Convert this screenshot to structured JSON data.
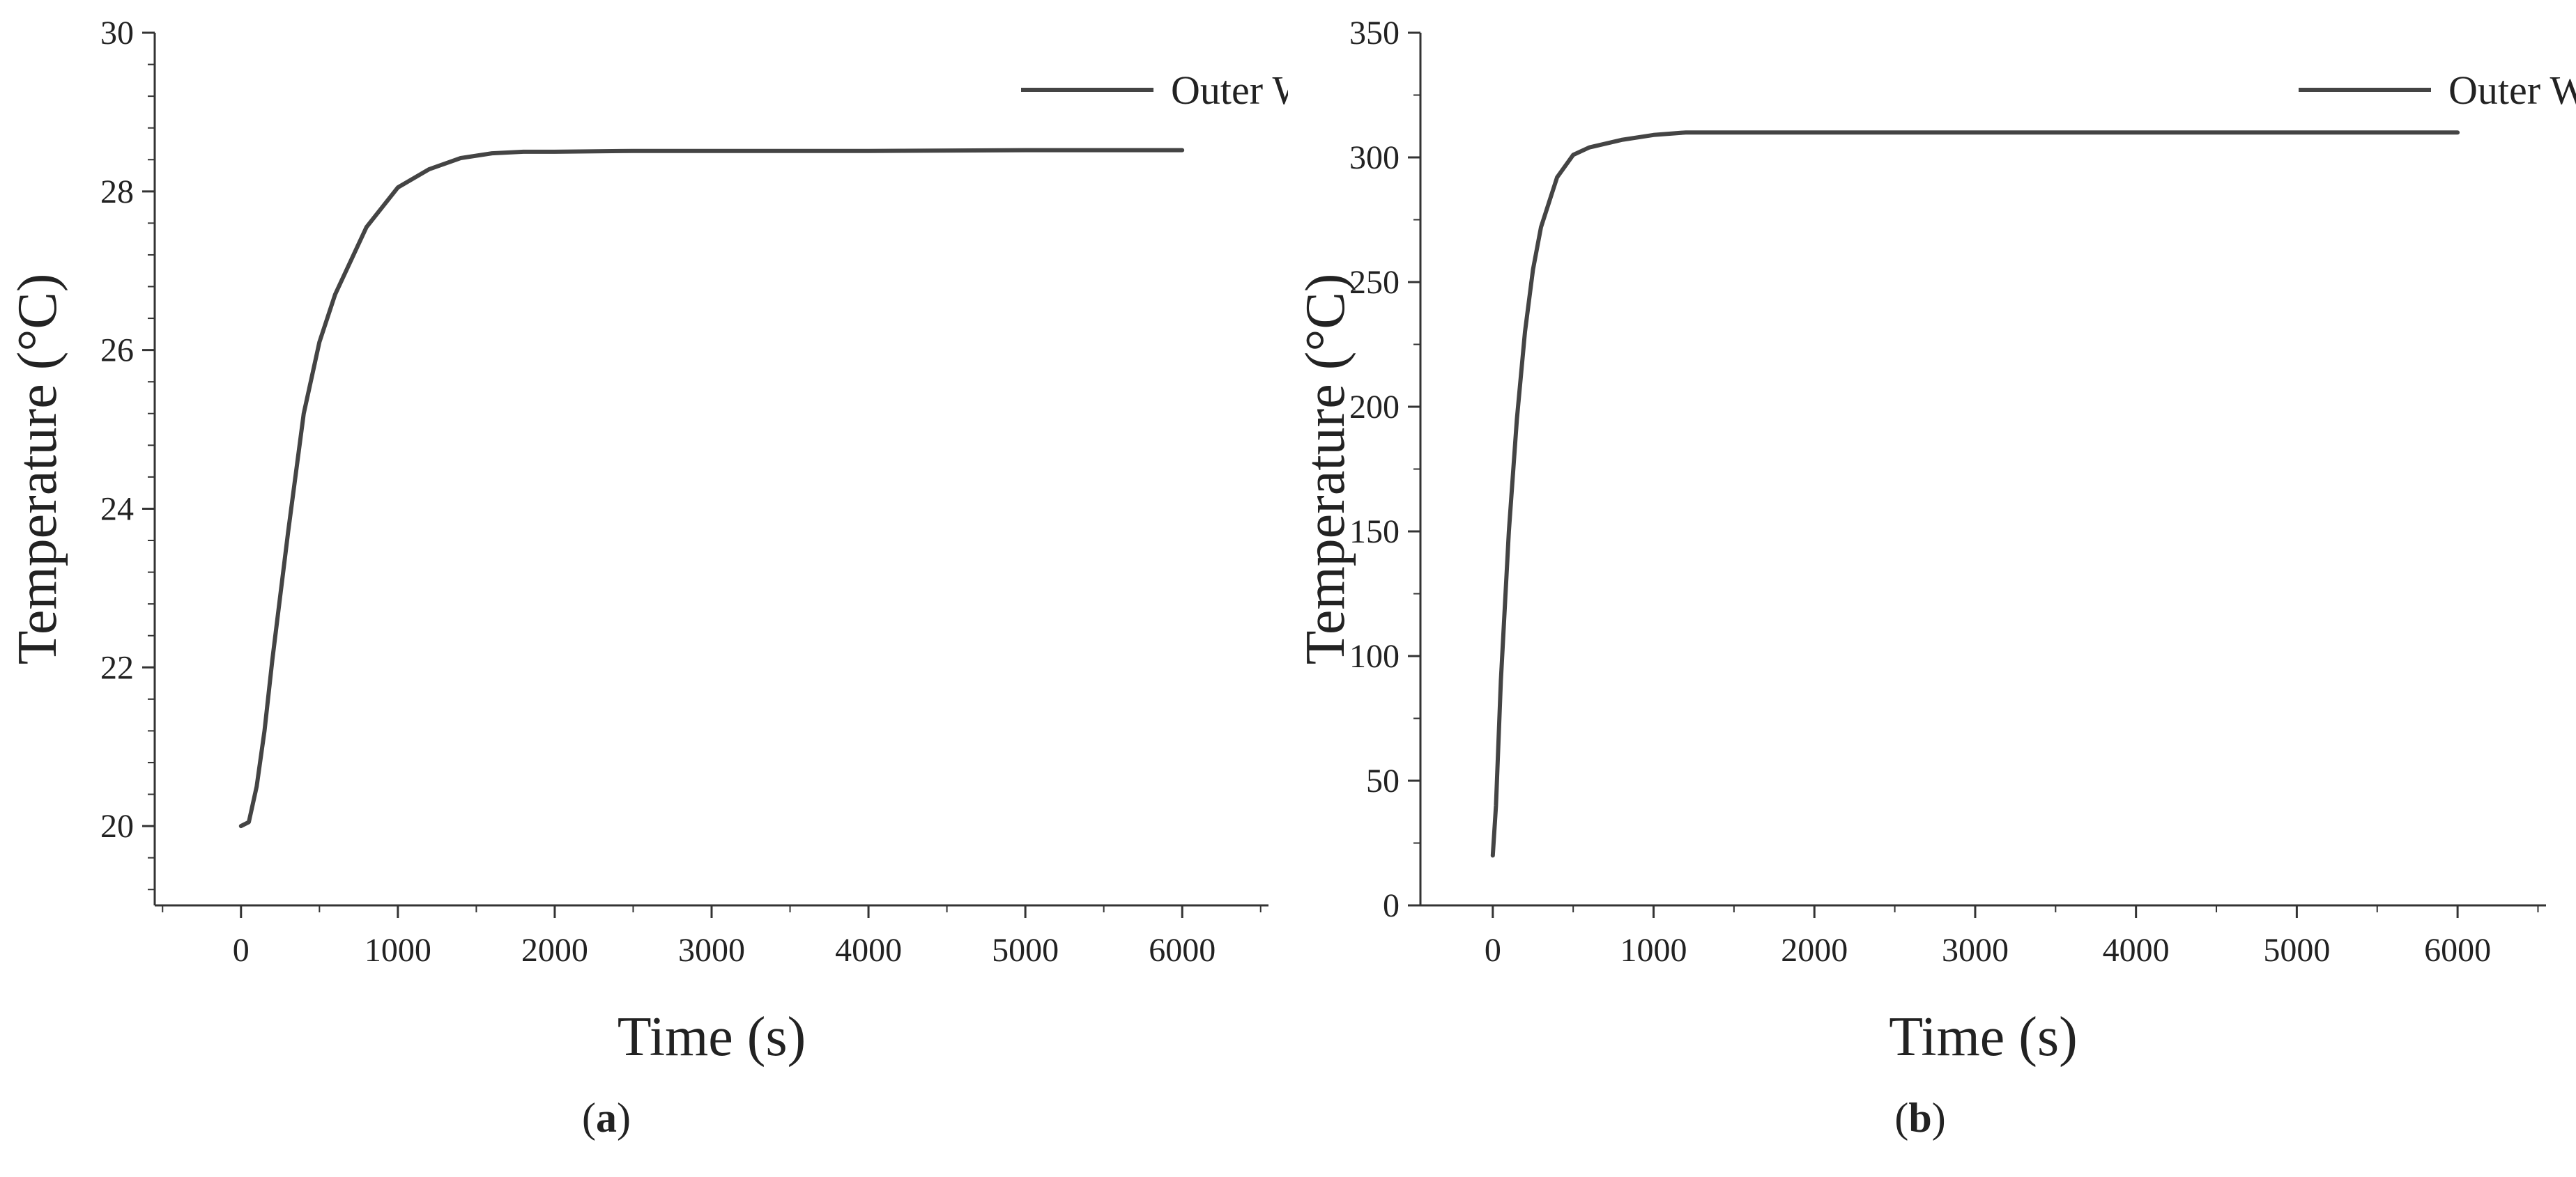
{
  "chart_data": [
    {
      "type": "line",
      "panel_label": "a",
      "xlabel": "Time (s)",
      "ylabel": "Temperature (°C)",
      "xlim": [
        -550,
        6550
      ],
      "ylim": [
        19,
        30
      ],
      "xticks": [
        0,
        1000,
        2000,
        3000,
        4000,
        5000,
        6000
      ],
      "yticks": [
        20,
        22,
        24,
        26,
        28,
        30
      ],
      "grid": false,
      "legend_position": "top-right",
      "series": [
        {
          "name": "Outer Wall",
          "color": "#444444",
          "x": [
            0,
            50,
            100,
            150,
            200,
            300,
            400,
            500,
            600,
            800,
            1000,
            1200,
            1400,
            1600,
            1800,
            2000,
            2500,
            3000,
            4000,
            5000,
            6000
          ],
          "y": [
            20.0,
            20.05,
            20.5,
            21.2,
            22.1,
            23.7,
            25.2,
            26.1,
            26.7,
            27.55,
            28.05,
            28.28,
            28.42,
            28.48,
            28.5,
            28.5,
            28.51,
            28.51,
            28.51,
            28.52,
            28.52
          ]
        }
      ]
    },
    {
      "type": "line",
      "panel_label": "b",
      "xlabel": "Time (s)",
      "ylabel": "Temperature (°C)",
      "xlim": [
        -450,
        6550
      ],
      "ylim": [
        0,
        350
      ],
      "xticks": [
        0,
        1000,
        2000,
        3000,
        4000,
        5000,
        6000
      ],
      "yticks": [
        0,
        50,
        100,
        150,
        200,
        250,
        300,
        350
      ],
      "grid": false,
      "legend_position": "top-right",
      "series": [
        {
          "name": "Outer Wall",
          "color": "#444444",
          "x": [
            0,
            20,
            50,
            100,
            150,
            200,
            250,
            300,
            400,
            500,
            600,
            800,
            1000,
            1200,
            1500,
            2000,
            3000,
            4000,
            5000,
            6000
          ],
          "y": [
            20,
            40,
            90,
            150,
            195,
            230,
            255,
            272,
            292,
            301,
            304,
            307,
            309,
            310,
            310,
            310,
            310,
            310,
            310,
            310
          ]
        }
      ]
    }
  ]
}
